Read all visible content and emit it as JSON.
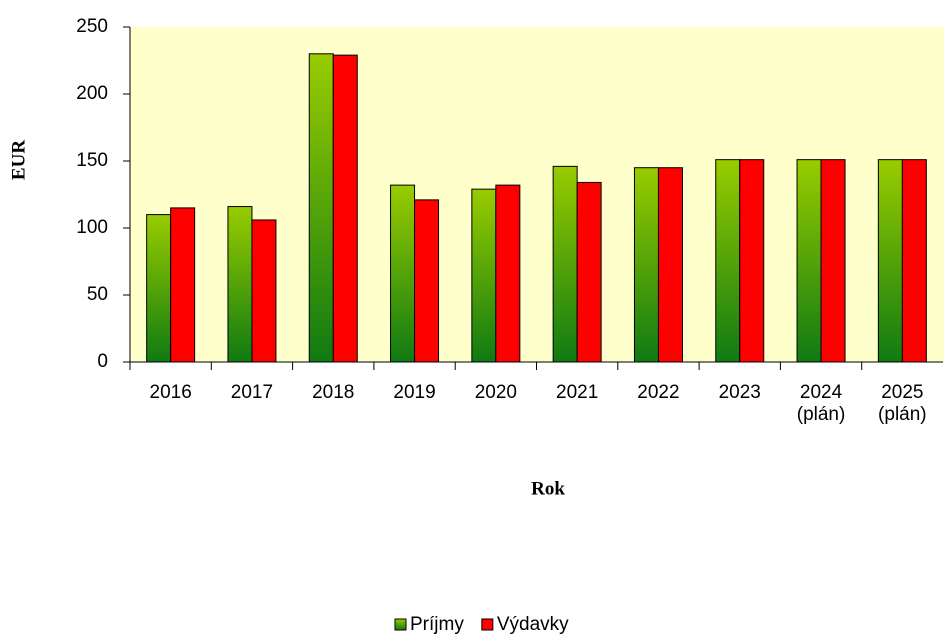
{
  "chart_data": {
    "type": "bar",
    "x_label": "Rok",
    "y_label": "EUR",
    "categories": [
      "2016",
      "2017",
      "2018",
      "2019",
      "2020",
      "2021",
      "2022",
      "2023",
      "2024\n(plán)",
      "2025\n(plán)"
    ],
    "series": [
      {
        "name": "Príjmy",
        "color": "#99cc00",
        "values": [
          110,
          116,
          230,
          132,
          129,
          146,
          145,
          151,
          151,
          151
        ]
      },
      {
        "name": "Výdavky",
        "color": "#ff0000",
        "values": [
          115,
          106,
          229,
          121,
          132,
          134,
          145,
          151,
          151,
          151
        ]
      }
    ],
    "ylim": [
      0,
      250
    ],
    "yticks": [
      0,
      50,
      100,
      150,
      200,
      250
    ],
    "legend": "bottom"
  }
}
